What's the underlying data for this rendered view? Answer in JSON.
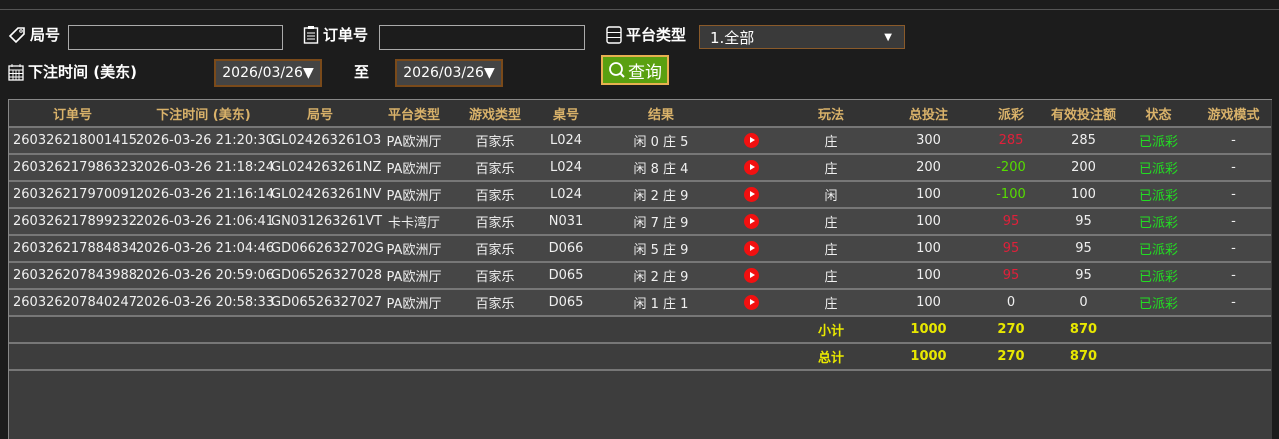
{
  "filters": {
    "round_label": "局号",
    "round_value": "",
    "order_label": "订单号",
    "order_value": "",
    "platform_label": "平台类型",
    "platform_selected": "1.全部",
    "time_label": "下注时间 (美东)",
    "date_from": "2026/03/26▼",
    "to_label": "至",
    "date_to": "2026/03/26▼",
    "query_label": "查询"
  },
  "table": {
    "headers": [
      "订单号",
      "下注时间 (美东)",
      "局号",
      "平台类型",
      "游戏类型",
      "桌号",
      "结果",
      "",
      "玩法",
      "总投注",
      "派彩",
      "有效投注额",
      "状态",
      "游戏模式"
    ],
    "rows": [
      {
        "order": "260326218001415",
        "time": "2026-03-26 21:20:30",
        "round": "GL024263261O3",
        "platform": "PA欧洲厅",
        "game": "百家乐",
        "table": "L024",
        "result": "闲 0 庄 5",
        "play": "庄",
        "bet": "300",
        "payout": "285",
        "payout_color": "red",
        "valid": "285",
        "status": "已派彩",
        "mode": "-"
      },
      {
        "order": "260326217986323",
        "time": "2026-03-26 21:18:24",
        "round": "GL024263261NZ",
        "platform": "PA欧洲厅",
        "game": "百家乐",
        "table": "L024",
        "result": "闲 8 庄 4",
        "play": "庄",
        "bet": "200",
        "payout": "-200",
        "payout_color": "green",
        "valid": "200",
        "status": "已派彩",
        "mode": "-"
      },
      {
        "order": "260326217970091",
        "time": "2026-03-26 21:16:14",
        "round": "GL024263261NV",
        "platform": "PA欧洲厅",
        "game": "百家乐",
        "table": "L024",
        "result": "闲 2 庄 9",
        "play": "闲",
        "bet": "100",
        "payout": "-100",
        "payout_color": "green",
        "valid": "100",
        "status": "已派彩",
        "mode": "-"
      },
      {
        "order": "260326217899232",
        "time": "2026-03-26 21:06:41",
        "round": "GN031263261VT",
        "platform": "卡卡湾厅",
        "game": "百家乐",
        "table": "N031",
        "result": "闲 7 庄 9",
        "play": "庄",
        "bet": "100",
        "payout": "95",
        "payout_color": "red",
        "valid": "95",
        "status": "已派彩",
        "mode": "-"
      },
      {
        "order": "260326217884834",
        "time": "2026-03-26 21:04:46",
        "round": "GD0662632702G",
        "platform": "PA欧洲厅",
        "game": "百家乐",
        "table": "D066",
        "result": "闲 5 庄 9",
        "play": "庄",
        "bet": "100",
        "payout": "95",
        "payout_color": "red",
        "valid": "95",
        "status": "已派彩",
        "mode": "-"
      },
      {
        "order": "260326207843988",
        "time": "2026-03-26 20:59:06",
        "round": "GD06526327028",
        "platform": "PA欧洲厅",
        "game": "百家乐",
        "table": "D065",
        "result": "闲 2 庄 9",
        "play": "庄",
        "bet": "100",
        "payout": "95",
        "payout_color": "red",
        "valid": "95",
        "status": "已派彩",
        "mode": "-"
      },
      {
        "order": "260326207840247",
        "time": "2026-03-26 20:58:33",
        "round": "GD06526327027",
        "platform": "PA欧洲厅",
        "game": "百家乐",
        "table": "D065",
        "result": "闲 1 庄 1",
        "play": "庄",
        "bet": "100",
        "payout": "0",
        "payout_color": "white",
        "valid": "0",
        "status": "已派彩",
        "mode": "-"
      }
    ],
    "subtotal": {
      "label": "小计",
      "bet": "1000",
      "payout": "270",
      "valid": "870"
    },
    "total": {
      "label": "总计",
      "bet": "1000",
      "payout": "270",
      "valid": "870"
    }
  },
  "colors": {
    "header_text": "#d9b26a",
    "status": "#22dd22",
    "sum_text": "#e8e800",
    "query_button": "#5aa010"
  }
}
